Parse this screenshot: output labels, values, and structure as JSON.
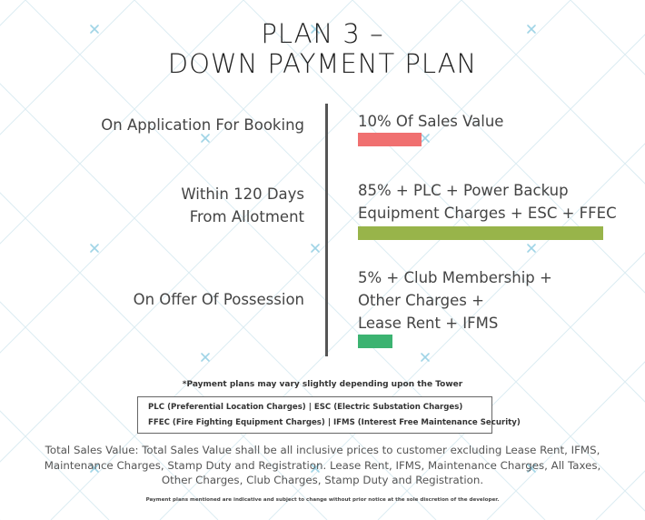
{
  "title": {
    "line1": "PLAN 3 –",
    "line2": "DOWN PAYMENT PLAN"
  },
  "stages": [
    {
      "label_lines": [
        "On Application For Booking"
      ],
      "value_lines": [
        "10% Of Sales Value"
      ],
      "bar_color": "#f07070",
      "bar_share": 0.26
    },
    {
      "label_lines": [
        "Within 120 Days",
        "From Allotment"
      ],
      "value_lines": [
        "85% + PLC + Power Backup",
        "Equipment Charges + ESC + FFEC"
      ],
      "bar_color": "#98b44a",
      "bar_share": 1.0
    },
    {
      "label_lines": [
        "On Offer Of Possession"
      ],
      "value_lines": [
        "5% + Club Membership +",
        "Other Charges +",
        "Lease Rent + IFMS"
      ],
      "bar_color": "#3cb371",
      "bar_share": 0.14
    }
  ],
  "note": "*Payment plans may vary slightly depending upon the Tower",
  "legend": {
    "line1": "PLC (Preferential Location Charges) | ESC (Electric Substation Charges)",
    "line2": "FFEC (Fire Fighting Equipment Charges) | IFMS (Interest Free Maintenance Security)"
  },
  "total_sales_value": {
    "line1": "Total Sales Value: Total Sales Value shall be all inclusive prices to customer excluding Lease Rent, IFMS,",
    "line2": "Maintenance Charges, Stamp Duty and Registration. Lease Rent, IFMS, Maintenance Charges, All Taxes,",
    "line3": "Other Charges, Club Charges, Stamp Duty and Registration."
  },
  "disclaimer": "Payment plans mentioned are indicative and subject to change without prior notice at the sole discretion of the developer.",
  "colors": {
    "pattern_line": "#dcecf2",
    "pattern_cross": "#9fd4e6",
    "divider": "#555555"
  }
}
